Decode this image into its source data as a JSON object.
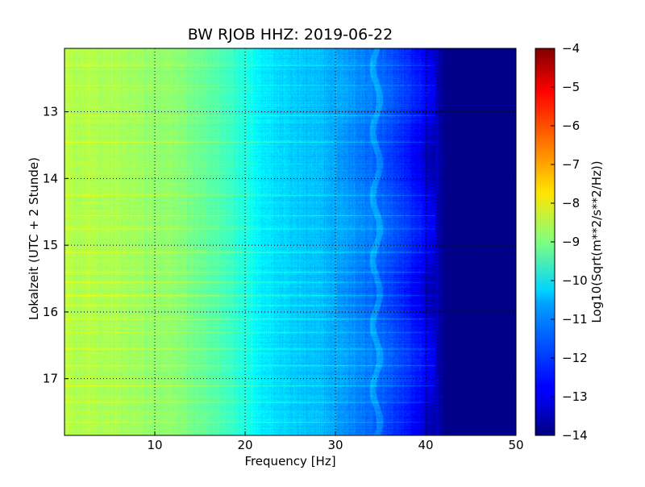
{
  "chart_data": {
    "type": "heatmap",
    "title": "BW RJOB HHZ: 2019-06-22",
    "xlabel": "Frequency [Hz]",
    "ylabel": "Lokalzeit (UTC + 2 Stunde)",
    "xlim": [
      0,
      50
    ],
    "ylim": [
      12.05,
      17.85
    ],
    "y_inverted": true,
    "x_ticks": [
      10,
      20,
      30,
      40,
      50
    ],
    "y_ticks": [
      13,
      14,
      15,
      16,
      17
    ],
    "grid": true,
    "colormap": "jet",
    "colorbar": {
      "label": "Log10(Sqrt(m**2/s**2/Hz))",
      "range": [
        -14,
        -4
      ],
      "ticks": [
        -4,
        -5,
        -6,
        -7,
        -8,
        -9,
        -10,
        -11,
        -12,
        -13,
        -14
      ]
    },
    "spectrum_profile": {
      "frequency_hz": [
        0,
        1,
        3,
        8,
        12,
        15,
        18,
        20,
        22,
        25,
        28,
        30,
        33,
        35,
        38,
        40,
        42,
        45,
        50
      ],
      "log10_amplitude": [
        -8.4,
        -8.5,
        -8.5,
        -8.7,
        -8.9,
        -9.2,
        -9.6,
        -10.0,
        -10.4,
        -10.7,
        -10.9,
        -11.1,
        -11.5,
        -11.8,
        -12.4,
        -12.9,
        -13.8,
        -13.9,
        -13.9
      ]
    },
    "bright_bands_local_hour": [
      12.3,
      12.6,
      13.05,
      13.45,
      14.25,
      14.55,
      14.75,
      15.1,
      15.4,
      15.55,
      15.75,
      15.9,
      16.1,
      16.3,
      16.55,
      16.8,
      17.1,
      17.35,
      17.65
    ],
    "narrowband_line_hz": 34.5
  }
}
